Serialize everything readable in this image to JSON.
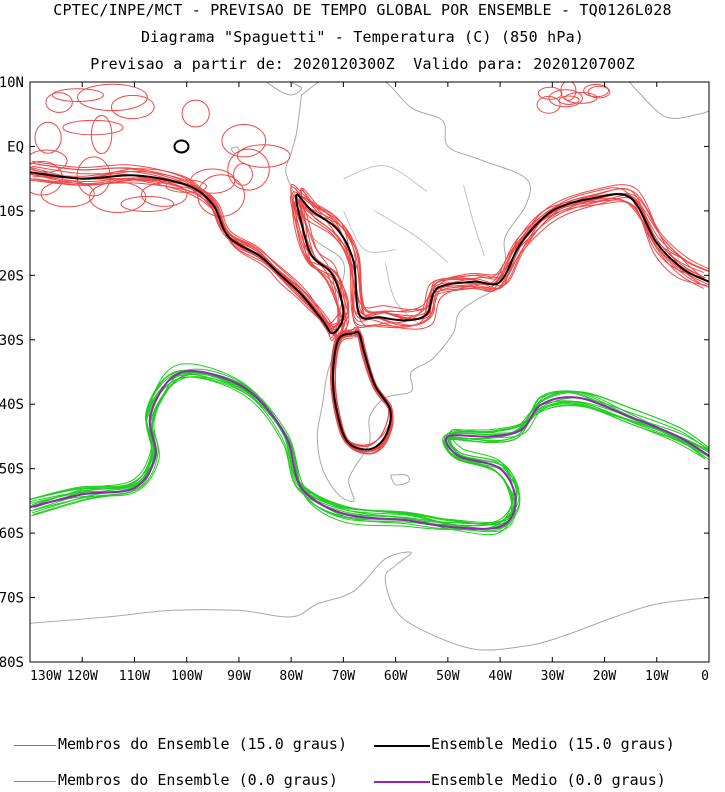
{
  "header": {
    "line1": "CPTEC/INPE/MCT - PREVISAO DE TEMPO GLOBAL POR ENSEMBLE - TQ0126L028",
    "line2": "Diagrama \"Spaguetti\" - Temperatura (C) (850 hPa)",
    "line3": "Previsao a partir de: 2020120300Z  Valido para: 2020120700Z"
  },
  "map": {
    "lon_range": [
      -130,
      0
    ],
    "lat_range": [
      -80,
      10
    ],
    "lat_ticks": [
      {
        "value": 10,
        "label": "10N"
      },
      {
        "value": 0,
        "label": "EQ"
      },
      {
        "value": -10,
        "label": "10S"
      },
      {
        "value": -20,
        "label": "20S"
      },
      {
        "value": -30,
        "label": "30S"
      },
      {
        "value": -40,
        "label": "40S"
      },
      {
        "value": -50,
        "label": "50S"
      },
      {
        "value": -60,
        "label": "60S"
      },
      {
        "value": -70,
        "label": "70S"
      },
      {
        "value": -80,
        "label": "80S"
      }
    ],
    "lon_ticks": [
      {
        "value": -130,
        "label": "130W"
      },
      {
        "value": -120,
        "label": "120W"
      },
      {
        "value": -110,
        "label": "110W"
      },
      {
        "value": -100,
        "label": "100W"
      },
      {
        "value": -90,
        "label": "90W"
      },
      {
        "value": -80,
        "label": "80W"
      },
      {
        "value": -70,
        "label": "70W"
      },
      {
        "value": -60,
        "label": "60W"
      },
      {
        "value": -50,
        "label": "50W"
      },
      {
        "value": -40,
        "label": "40W"
      },
      {
        "value": -30,
        "label": "30W"
      },
      {
        "value": -20,
        "label": "20W"
      },
      {
        "value": -10,
        "label": "10W"
      },
      {
        "value": 0,
        "label": "0"
      }
    ],
    "colors": {
      "members_15": "#f04848",
      "mean_15": "#000000",
      "members_0": "#22cc22",
      "mean_0": "#9b1fbf",
      "coast": "#a8a8a8"
    },
    "contour_15_mean": [
      [
        -130,
        -4
      ],
      [
        -120,
        -5
      ],
      [
        -110,
        -4.5
      ],
      [
        -100,
        -6
      ],
      [
        -95,
        -9
      ],
      [
        -92,
        -14
      ],
      [
        -86,
        -17
      ],
      [
        -82,
        -20
      ],
      [
        -78,
        -23
      ],
      [
        -74,
        -27
      ],
      [
        -72,
        -29
      ],
      [
        -70,
        -26
      ],
      [
        -72,
        -20
      ],
      [
        -76,
        -17
      ],
      [
        -78,
        -12
      ],
      [
        -79,
        -7.5
      ],
      [
        -76,
        -10
      ],
      [
        -71,
        -13
      ],
      [
        -68,
        -18
      ],
      [
        -67,
        -26
      ],
      [
        -63,
        -26.5
      ],
      [
        -58,
        -27
      ],
      [
        -54,
        -26
      ],
      [
        -52,
        -22
      ],
      [
        -45,
        -21
      ],
      [
        -40,
        -21
      ],
      [
        -36,
        -15
      ],
      [
        -30,
        -10
      ],
      [
        -22,
        -8
      ],
      [
        -15,
        -8
      ],
      [
        -10,
        -15
      ],
      [
        -5,
        -19
      ],
      [
        0,
        -21
      ]
    ],
    "contour_15_south_loop": [
      [
        -68,
        -29
      ],
      [
        -71,
        -30
      ],
      [
        -72,
        -36
      ],
      [
        -71,
        -42
      ],
      [
        -69,
        -46
      ],
      [
        -65,
        -47
      ],
      [
        -62,
        -45
      ],
      [
        -61,
        -41
      ],
      [
        -64,
        -37
      ],
      [
        -66,
        -32
      ],
      [
        -67,
        -29
      ],
      [
        -68,
        -29
      ]
    ],
    "contour_0_mean": [
      [
        -130,
        -56
      ],
      [
        -120,
        -54
      ],
      [
        -110,
        -53
      ],
      [
        -106,
        -48
      ],
      [
        -107,
        -42
      ],
      [
        -103,
        -36
      ],
      [
        -97,
        -35
      ],
      [
        -88,
        -38
      ],
      [
        -81,
        -45
      ],
      [
        -78,
        -53
      ],
      [
        -70,
        -57
      ],
      [
        -58,
        -58
      ],
      [
        -50,
        -59
      ],
      [
        -40,
        -59
      ],
      [
        -37,
        -55
      ],
      [
        -40,
        -50
      ],
      [
        -48,
        -48
      ],
      [
        -50,
        -45
      ],
      [
        -42,
        -45
      ],
      [
        -36,
        -44
      ],
      [
        -32,
        -40
      ],
      [
        -25,
        -39
      ],
      [
        -15,
        -42
      ],
      [
        -6,
        -45
      ],
      [
        0,
        -48
      ]
    ]
  },
  "legend": {
    "members_15_label": "Membros do Ensemble (15.0 graus)",
    "mean_15_label": "Ensemble Medio (15.0 graus)",
    "members_0_label": "Membros do Ensemble (0.0 graus)",
    "mean_0_label": "Ensemble Medio (0.0 graus)"
  }
}
